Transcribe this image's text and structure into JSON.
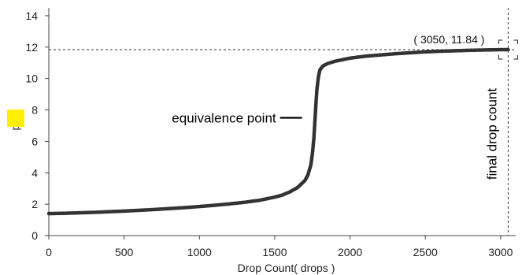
{
  "chart_data": {
    "type": "scatter",
    "title": "",
    "xlabel": "Drop Count( drops )",
    "ylabel": "pH",
    "xlim": [
      0,
      3100
    ],
    "ylim": [
      0,
      14.5
    ],
    "xticks": [
      0,
      500,
      1000,
      1500,
      2000,
      2500,
      3000
    ],
    "yticks": [
      0,
      2,
      4,
      6,
      8,
      10,
      12,
      14
    ],
    "grid": false,
    "legend": "none",
    "series": [
      {
        "color": "#333333",
        "x": [
          0,
          100,
          200,
          300,
          400,
          500,
          600,
          700,
          800,
          900,
          1000,
          1100,
          1200,
          1300,
          1400,
          1500,
          1550,
          1600,
          1650,
          1700,
          1720,
          1740,
          1750,
          1760,
          1765,
          1770,
          1775,
          1780,
          1790,
          1800,
          1820,
          1850,
          1900,
          2000,
          2100,
          2200,
          2300,
          2400,
          2500,
          2600,
          2700,
          2800,
          2900,
          3000,
          3050
        ],
        "y": [
          1.4,
          1.42,
          1.45,
          1.48,
          1.52,
          1.56,
          1.61,
          1.66,
          1.72,
          1.78,
          1.85,
          1.93,
          2.02,
          2.12,
          2.25,
          2.45,
          2.58,
          2.78,
          3.05,
          3.5,
          3.85,
          4.5,
          5.2,
          6.2,
          7.0,
          7.8,
          8.6,
          9.3,
          10.1,
          10.55,
          10.8,
          10.95,
          11.1,
          11.3,
          11.42,
          11.5,
          11.58,
          11.64,
          11.7,
          11.74,
          11.77,
          11.8,
          11.82,
          11.84,
          11.84
        ]
      }
    ],
    "annotations": {
      "equivalence": {
        "text": "equivalence point",
        "x": 1765,
        "y": 7.0
      },
      "final": {
        "text": "final drop count",
        "x": 3050
      },
      "crosshair": {
        "label": "( 3050, 11.84 )",
        "x": 3050,
        "y": 11.84
      }
    }
  },
  "colors": {
    "marker": "#333333",
    "axis": "#444444",
    "guide": "#333333",
    "ph_swatch": "#ffee00"
  },
  "icons": {
    "ph_swatch": "yellow-square-icon",
    "crosshair": "crosshair-icon"
  }
}
